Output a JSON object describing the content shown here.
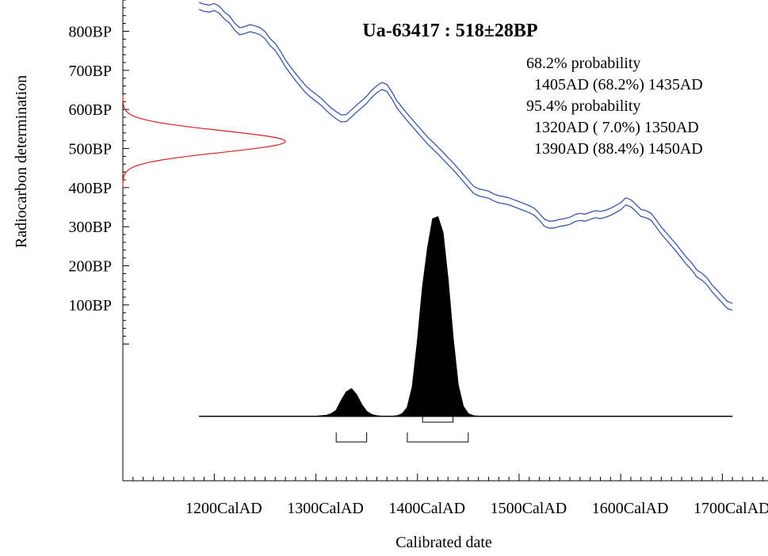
{
  "chart_data": {
    "type": "line",
    "title": "Ua-63417 : 518±28BP",
    "xlabel": "Calibrated date",
    "ylabel": "Radiocarbon determination",
    "xlim": [
      1110,
      1745
    ],
    "ylim": [
      -350,
      880
    ],
    "x_ticks": [
      {
        "value": 1200,
        "label": "1200CalAD"
      },
      {
        "value": 1300,
        "label": "1300CalAD"
      },
      {
        "value": 1400,
        "label": "1400CalAD"
      },
      {
        "value": 1500,
        "label": "1500CalAD"
      },
      {
        "value": 1600,
        "label": "1600CalAD"
      },
      {
        "value": 1700,
        "label": "1700CalAD"
      }
    ],
    "y_ticks": [
      {
        "value": 800,
        "label": "800BP"
      },
      {
        "value": 700,
        "label": "700BP"
      },
      {
        "value": 600,
        "label": "600BP"
      },
      {
        "value": 500,
        "label": "500BP"
      },
      {
        "value": 400,
        "label": "400BP"
      },
      {
        "value": 300,
        "label": "300BP"
      },
      {
        "value": 200,
        "label": "200BP"
      },
      {
        "value": 100,
        "label": "100BP"
      }
    ],
    "probability_text": [
      "68.2% probability",
      "  1405AD (68.2%) 1435AD",
      "95.4% probability",
      "  1320AD ( 7.0%) 1350AD",
      "  1390AD (88.4%) 1450AD"
    ],
    "measurement": {
      "bp": 518,
      "error": 28,
      "color": "#d62020"
    },
    "calibration_curve": {
      "color": "#3a55b0",
      "x": [
        1185,
        1190,
        1195,
        1200,
        1205,
        1210,
        1215,
        1220,
        1225,
        1230,
        1235,
        1240,
        1245,
        1250,
        1255,
        1260,
        1265,
        1270,
        1275,
        1280,
        1285,
        1290,
        1295,
        1300,
        1305,
        1310,
        1315,
        1320,
        1325,
        1330,
        1335,
        1340,
        1345,
        1350,
        1355,
        1360,
        1365,
        1370,
        1375,
        1380,
        1385,
        1390,
        1395,
        1400,
        1405,
        1410,
        1415,
        1420,
        1425,
        1430,
        1435,
        1440,
        1445,
        1450,
        1455,
        1460,
        1465,
        1470,
        1475,
        1480,
        1485,
        1490,
        1495,
        1500,
        1505,
        1510,
        1515,
        1520,
        1525,
        1530,
        1535,
        1540,
        1545,
        1550,
        1555,
        1560,
        1565,
        1570,
        1575,
        1580,
        1585,
        1590,
        1595,
        1600,
        1605,
        1610,
        1615,
        1620,
        1625,
        1630,
        1635,
        1640,
        1645,
        1650,
        1655,
        1660,
        1665,
        1670,
        1675,
        1680,
        1685,
        1690,
        1695,
        1700,
        1705,
        1710
      ],
      "y": [
        865,
        860,
        858,
        862,
        855,
        840,
        830,
        812,
        800,
        803,
        808,
        805,
        800,
        790,
        772,
        760,
        740,
        718,
        700,
        683,
        667,
        652,
        640,
        630,
        620,
        607,
        595,
        585,
        577,
        578,
        590,
        602,
        613,
        625,
        640,
        652,
        660,
        655,
        635,
        612,
        596,
        580,
        565,
        550,
        535,
        520,
        508,
        495,
        482,
        468,
        455,
        440,
        425,
        410,
        395,
        388,
        385,
        382,
        375,
        370,
        368,
        365,
        360,
        355,
        350,
        345,
        338,
        325,
        310,
        305,
        306,
        310,
        312,
        315,
        322,
        325,
        323,
        328,
        332,
        330,
        333,
        338,
        345,
        352,
        365,
        360,
        348,
        335,
        332,
        325,
        308,
        290,
        275,
        260,
        245,
        228,
        212,
        198,
        180,
        172,
        160,
        142,
        128,
        114,
        100,
        95
      ],
      "band": 9
    },
    "probability_distribution": {
      "color": "#000000",
      "baseline": -185,
      "x": [
        1185,
        1300,
        1310,
        1315,
        1320,
        1325,
        1330,
        1335,
        1340,
        1345,
        1350,
        1355,
        1360,
        1365,
        1370,
        1375,
        1380,
        1385,
        1390,
        1395,
        1400,
        1405,
        1410,
        1415,
        1420,
        1425,
        1430,
        1435,
        1440,
        1445,
        1450,
        1455,
        1460,
        1470,
        1710
      ],
      "y": [
        0,
        0,
        2,
        6,
        15,
        40,
        62,
        70,
        55,
        30,
        12,
        4,
        1,
        0,
        0,
        0,
        1,
        6,
        22,
        75,
        190,
        330,
        430,
        505,
        510,
        470,
        350,
        200,
        80,
        25,
        6,
        1,
        0,
        0,
        0
      ]
    },
    "ranges": {
      "one_sigma": [
        [
          1405,
          1435
        ]
      ],
      "two_sigma": [
        [
          1320,
          1350
        ],
        [
          1390,
          1450
        ]
      ]
    }
  }
}
